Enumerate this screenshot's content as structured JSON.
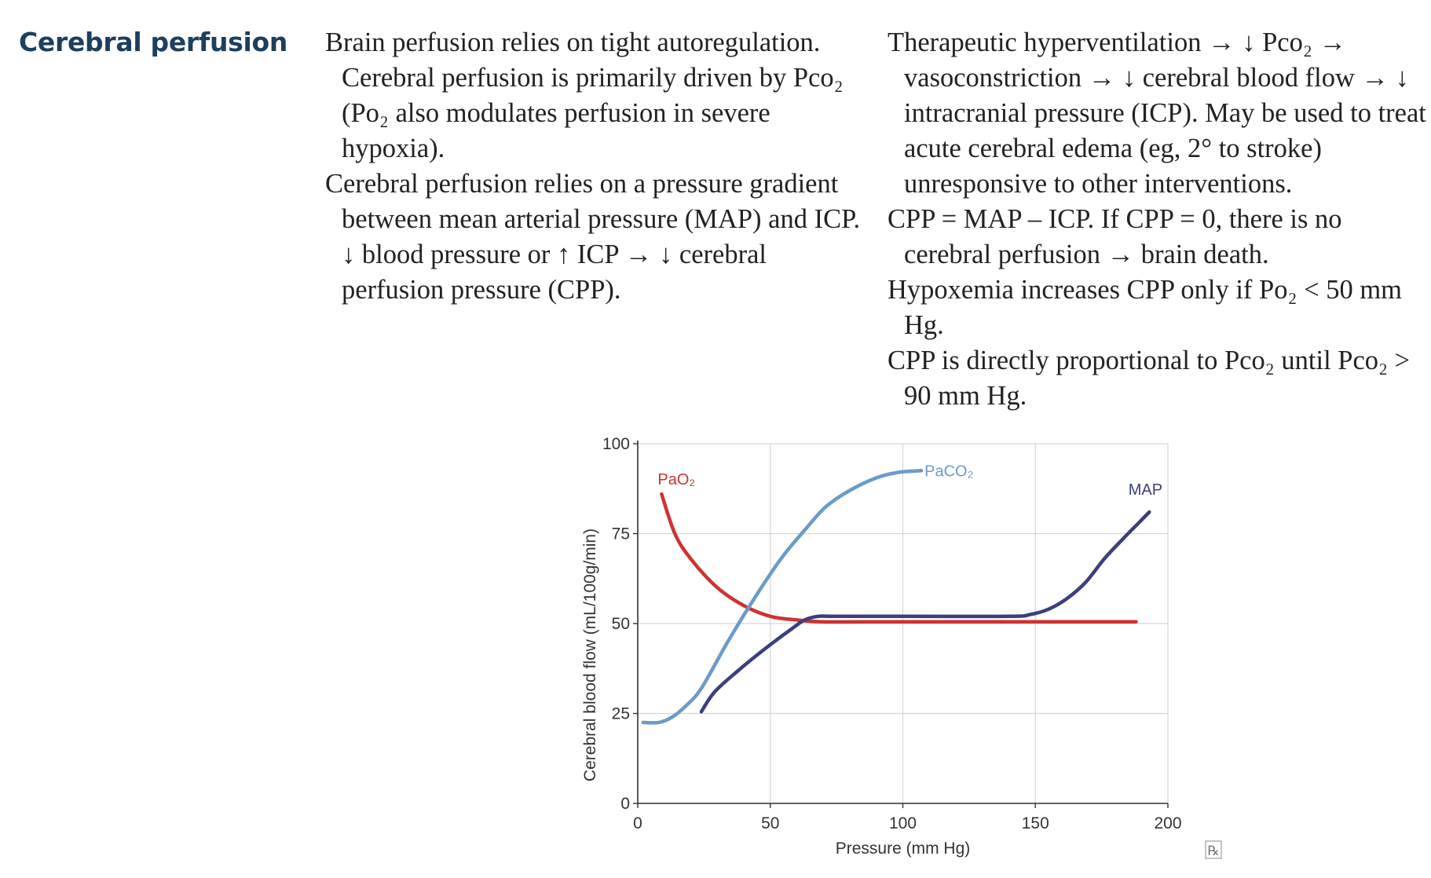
{
  "heading": "Cerebral perfusion",
  "left_column": [
    "Brain perfusion relies on tight autoregulation. Cerebral perfusion is primarily driven by Pco₂ (Po₂ also modulates perfusion in severe hypoxia).",
    "Cerebral perfusion relies on a pressure gradient between mean arterial pressure (MAP) and ICP. ↓ blood pressure or ↑ ICP → ↓ cerebral perfusion pressure (CPP)."
  ],
  "right_column": [
    "Therapeutic hyperventilation → ↓ Pco₂ → vasoconstriction → ↓ cerebral blood flow → ↓ intracranial pressure (ICP). May be used to treat acute cerebral edema (eg, 2° to stroke) unresponsive to other interventions.",
    "CPP = MAP – ICP. If CPP = 0, there is no cerebral perfusion → brain death.",
    "Hypoxemia increases CPP only if Po₂ < 50 mm Hg.",
    "CPP is directly proportional to Pco₂ until Pco₂ > 90 mm Hg."
  ],
  "logo": "℞",
  "chart_data": {
    "type": "line",
    "xlabel": "Pressure (mm Hg)",
    "ylabel": "Cerebral blood flow (mL/100g/min)",
    "xlim": [
      0,
      200
    ],
    "ylim": [
      0,
      100
    ],
    "xticks": [
      0,
      50,
      100,
      150,
      200
    ],
    "yticks": [
      0,
      25,
      50,
      75,
      100
    ],
    "grid": true,
    "series": [
      {
        "name": "PaO₂",
        "color": "#cc3333",
        "points": [
          [
            9,
            86
          ],
          [
            14,
            75
          ],
          [
            20,
            68
          ],
          [
            30,
            60
          ],
          [
            40,
            55
          ],
          [
            50,
            52
          ],
          [
            60,
            51
          ],
          [
            70,
            50.5
          ],
          [
            100,
            50.5
          ],
          [
            150,
            50.5
          ],
          [
            188,
            50.5
          ]
        ]
      },
      {
        "name": "PaCO₂",
        "color": "#6a9bc8",
        "points": [
          [
            2,
            22.5
          ],
          [
            8,
            22.5
          ],
          [
            13,
            24
          ],
          [
            18,
            27
          ],
          [
            24,
            32
          ],
          [
            34,
            45
          ],
          [
            44,
            57
          ],
          [
            54,
            68
          ],
          [
            63,
            76
          ],
          [
            71,
            82.5
          ],
          [
            80,
            87
          ],
          [
            90,
            90.5
          ],
          [
            98,
            92
          ],
          [
            107,
            92.5
          ]
        ]
      },
      {
        "name": "MAP",
        "color": "#3b3f7d",
        "points": [
          [
            24,
            25.5
          ],
          [
            29,
            31
          ],
          [
            38,
            37
          ],
          [
            48,
            43
          ],
          [
            58,
            48.5
          ],
          [
            63,
            51
          ],
          [
            68,
            52
          ],
          [
            75,
            52
          ],
          [
            100,
            52
          ],
          [
            140,
            52
          ],
          [
            148,
            52.5
          ],
          [
            155,
            54
          ],
          [
            162,
            57
          ],
          [
            169,
            61.5
          ],
          [
            176,
            68
          ],
          [
            183,
            73.5
          ],
          [
            189,
            78
          ],
          [
            193,
            81
          ]
        ]
      }
    ]
  }
}
